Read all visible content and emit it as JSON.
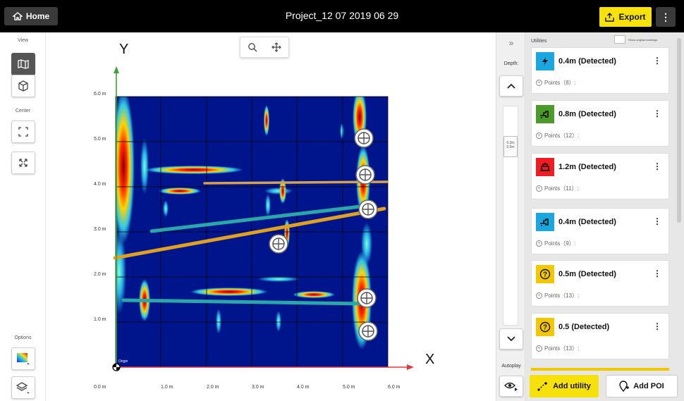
{
  "header": {
    "home_label": "Home",
    "title": "Project_12 07 2019 06 29",
    "export_label": "Export"
  },
  "left_toolbar": {
    "view_label": "View",
    "center_label": "Center",
    "options_label": "Options"
  },
  "plot": {
    "y_label": "Y",
    "x_label": "X",
    "origin_label": "Origin",
    "y_ticks": [
      "6.0 m",
      "5.0 m",
      "4.0 m",
      "3.0 m",
      "2.0 m",
      "1.0 m"
    ],
    "x_ticks": [
      "0.0 m",
      "1.0 m",
      "2.0 m",
      "3.0 m",
      "4.0 m",
      "5.0 m",
      "6.0 m"
    ]
  },
  "depth": {
    "label": "Depth:",
    "thumb_top": "0.3m",
    "thumb_bottom": "0.5m",
    "autoplay_label": "Autoplay"
  },
  "utilities": {
    "header": "Utilities",
    "show_original": "Show original markings",
    "items": [
      {
        "title": "0.4m (Detected)",
        "points": "Points（8）:",
        "color": "#1aa6df",
        "icon": "lightning-icon"
      },
      {
        "title": "0.8m (Detected)",
        "points": "Points（12）:",
        "color": "#4c9a2a",
        "icon": "pipe-icon"
      },
      {
        "title": "1.2m (Detected)",
        "points": "Points（11）:",
        "color": "#ef1c24",
        "icon": "gas-icon"
      },
      {
        "title": "0.4m (Detected)",
        "points": "Points（9）:",
        "color": "#1aa6df",
        "icon": "pipe-icon"
      },
      {
        "title": "0.5m (Detected)",
        "points": "Points（13）:",
        "color": "#f2c700",
        "icon": "unknown-icon"
      },
      {
        "title": "0.5 (Detected)",
        "points": "Points（13）:",
        "color": "#f2c700",
        "icon": "unknown-icon"
      }
    ],
    "add_utility_label": "Add utility",
    "add_poi_label": "Add POI"
  }
}
